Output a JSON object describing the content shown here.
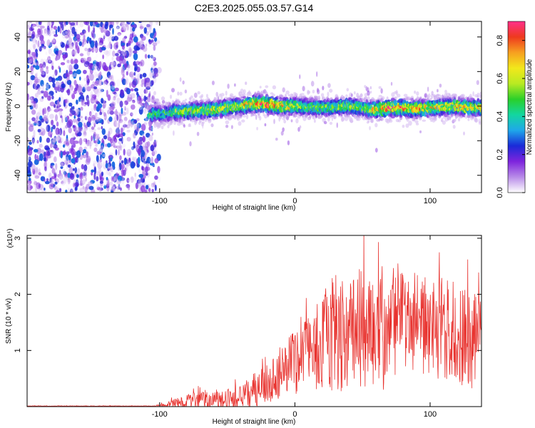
{
  "title": "C2E3.2025.055.03.57.G14",
  "chart_data": [
    {
      "type": "heatmap",
      "xlabel": "Height of straight line (km)",
      "ylabel": "Frequency (Hz)",
      "xlim": [
        -198,
        138
      ],
      "ylim": [
        -50,
        49
      ],
      "xticks": [
        -100,
        0,
        100
      ],
      "yticks": [
        -40,
        -20,
        0,
        20,
        40
      ],
      "grid": false,
      "colorbar": {
        "label": "Normalized spectral amplitude",
        "range": [
          0,
          0.9
        ],
        "ticks": [
          0.0,
          0.2,
          0.4,
          0.6,
          0.8
        ],
        "colormap": [
          "#ffffff",
          "#b88be8",
          "#7e24dd",
          "#1a2ad8",
          "#1fa8ea",
          "#13d6a0",
          "#2ad02a",
          "#b8ea22",
          "#f2e81b",
          "#f7a020",
          "#ee3a1e",
          "#ff2f8a"
        ]
      },
      "noise_region_x": [
        -198,
        -102
      ],
      "ridge": {
        "x": [
          -108,
          -100,
          -90,
          -80,
          -70,
          -60,
          -50,
          -40,
          -30,
          -20,
          -10,
          0,
          10,
          20,
          30,
          40,
          50,
          60,
          70,
          80,
          90,
          100,
          110,
          120,
          130,
          138
        ],
        "center": [
          -5,
          -4.5,
          -3.5,
          -3,
          -2.5,
          -2,
          -1,
          0,
          1.5,
          1,
          0,
          0,
          -0.5,
          -1,
          -0.5,
          0,
          -1,
          -2,
          -1,
          -1,
          -1.5,
          -1,
          -0.5,
          0,
          -1,
          -1
        ],
        "peak": [
          0.5,
          0.45,
          0.55,
          0.6,
          0.6,
          0.65,
          0.6,
          0.65,
          0.8,
          0.85,
          0.75,
          0.65,
          0.55,
          0.55,
          0.55,
          0.6,
          0.55,
          0.75,
          0.85,
          0.8,
          0.75,
          0.7,
          0.65,
          0.7,
          0.7,
          0.65
        ]
      }
    },
    {
      "type": "line",
      "xlabel": "Height of straight line (km)",
      "ylabel": "SNR (10 * v/v)",
      "exponent_label": "(x10⁴)",
      "xlim": [
        -198,
        138
      ],
      "ylim": [
        0,
        3.05
      ],
      "xticks": [
        -100,
        0,
        100
      ],
      "yticks": [
        1,
        2,
        3
      ],
      "grid": false,
      "series": [
        {
          "color": "#e8332f",
          "envelope_x": [
            -198,
            -105,
            -95,
            -90,
            -80,
            -70,
            -60,
            -50,
            -40,
            -30,
            -20,
            -10,
            0,
            10,
            20,
            30,
            40,
            50,
            60,
            70,
            80,
            90,
            100,
            110,
            120,
            130,
            138
          ],
          "envelope_mid": [
            0.01,
            0.01,
            0.03,
            0.05,
            0.1,
            0.12,
            0.1,
            0.12,
            0.18,
            0.3,
            0.4,
            0.6,
            0.8,
            0.9,
            1.1,
            1.2,
            1.3,
            1.4,
            1.3,
            1.3,
            1.5,
            1.5,
            1.4,
            1.3,
            1.2,
            1.2,
            1.1
          ],
          "envelope_amp": [
            0.005,
            0.005,
            0.04,
            0.08,
            0.12,
            0.15,
            0.15,
            0.2,
            0.22,
            0.3,
            0.35,
            0.45,
            0.6,
            0.7,
            0.9,
            0.95,
            1.0,
            1.1,
            1.0,
            1.0,
            0.9,
            0.9,
            0.85,
            0.85,
            0.85,
            0.9,
            0.9
          ]
        }
      ]
    }
  ]
}
